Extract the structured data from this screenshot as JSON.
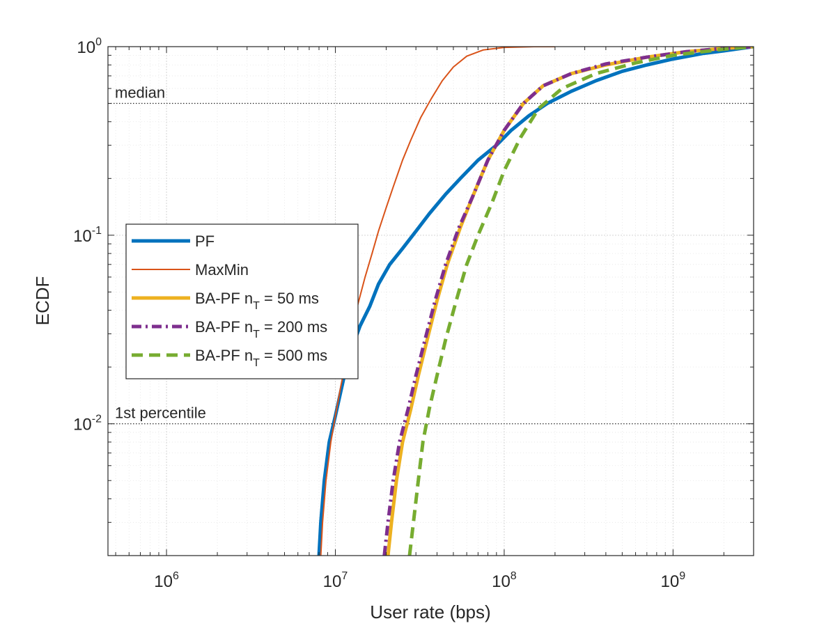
{
  "chart_data": {
    "type": "line",
    "xscale": "log",
    "yscale": "log",
    "xlabel": "User rate (bps)",
    "ylabel": "ECDF",
    "xlim": [
      450000,
      3000000000
    ],
    "ylim": [
      0.002,
      1
    ],
    "grid": true,
    "x_ticks": [
      {
        "value": 1000000,
        "base": "10",
        "exp": "6"
      },
      {
        "value": 10000000,
        "base": "10",
        "exp": "7"
      },
      {
        "value": 100000000,
        "base": "10",
        "exp": "8"
      },
      {
        "value": 1000000000,
        "base": "10",
        "exp": "9"
      }
    ],
    "y_ticks": [
      {
        "value": 0.01,
        "base": "10",
        "exp": "-2"
      },
      {
        "value": 0.1,
        "base": "10",
        "exp": "-1"
      },
      {
        "value": 1,
        "base": "10",
        "exp": "0"
      }
    ],
    "reference_lines": [
      {
        "y": 0.5,
        "label": "median"
      },
      {
        "y": 0.01,
        "label": "1st percentile"
      }
    ],
    "legend": {
      "location": "center-left",
      "entries": [
        {
          "series": 0,
          "label": "PF",
          "sub": ""
        },
        {
          "series": 1,
          "label": "MaxMin",
          "sub": ""
        },
        {
          "series": 2,
          "label": "BA-PF n",
          "sub": "T",
          "suffix": " = 50 ms"
        },
        {
          "series": 3,
          "label": "BA-PF n",
          "sub": "T",
          "suffix": " = 200 ms"
        },
        {
          "series": 4,
          "label": "BA-PF n",
          "sub": "T",
          "suffix": " = 500 ms"
        }
      ]
    },
    "series": [
      {
        "name": "PF",
        "color": "#0072BD",
        "style": "solid",
        "weight": "thick",
        "x": [
          8000000,
          8200000,
          8600000,
          9200000,
          10000000,
          10800000,
          11600000,
          12500000,
          14000000,
          16000000,
          18000000,
          21000000,
          25000000,
          30000000,
          36000000,
          45000000,
          55000000,
          70000000,
          90000000,
          110000000,
          140000000,
          180000000,
          250000000,
          350000000,
          500000000,
          700000000,
          1000000000,
          1500000000,
          2000000000,
          3000000000
        ],
        "y": [
          0.002,
          0.003,
          0.005,
          0.008,
          0.011,
          0.015,
          0.02,
          0.025,
          0.033,
          0.042,
          0.055,
          0.07,
          0.085,
          0.105,
          0.13,
          0.165,
          0.2,
          0.25,
          0.3,
          0.36,
          0.43,
          0.5,
          0.58,
          0.66,
          0.74,
          0.8,
          0.86,
          0.92,
          0.95,
          1.0
        ]
      },
      {
        "name": "MaxMin",
        "color": "#D95319",
        "style": "solid",
        "weight": "thin",
        "x": [
          8200000,
          8400000,
          8800000,
          9400000,
          10000000,
          10800000,
          11600000,
          12400000,
          13500000,
          15000000,
          16500000,
          18000000,
          20000000,
          22000000,
          25000000,
          28000000,
          32000000,
          37000000,
          43000000,
          50000000,
          60000000,
          75000000,
          100000000,
          150000000,
          200000000
        ],
        "y": [
          0.002,
          0.003,
          0.005,
          0.008,
          0.011,
          0.016,
          0.022,
          0.03,
          0.042,
          0.06,
          0.08,
          0.105,
          0.14,
          0.18,
          0.25,
          0.32,
          0.42,
          0.53,
          0.66,
          0.78,
          0.89,
          0.96,
          0.99,
          1.0,
          1.0
        ]
      },
      {
        "name": "BA-PF nT = 50 ms",
        "color": "#EDB120",
        "style": "solid",
        "weight": "thick",
        "x": [
          20500000,
          21500000,
          23000000,
          25000000,
          28000000,
          31000000,
          35000000,
          40000000,
          46000000,
          55000000,
          65000000,
          80000000,
          100000000,
          130000000,
          170000000,
          250000000,
          400000000,
          700000000,
          1200000000,
          2000000000,
          3000000000
        ],
        "y": [
          0.002,
          0.003,
          0.005,
          0.008,
          0.012,
          0.018,
          0.028,
          0.045,
          0.07,
          0.11,
          0.16,
          0.25,
          0.36,
          0.5,
          0.62,
          0.72,
          0.8,
          0.88,
          0.94,
          0.98,
          1.0
        ]
      },
      {
        "name": "BA-PF nT = 200 ms",
        "color": "#7E2F8E",
        "style": "dashdot",
        "weight": "thick",
        "x": [
          19500000,
          20500000,
          22000000,
          24000000,
          27000000,
          30000000,
          34000000,
          39000000,
          45000000,
          54000000,
          65000000,
          80000000,
          100000000,
          130000000,
          170000000,
          250000000,
          400000000,
          700000000,
          1200000000,
          2000000000,
          3000000000
        ],
        "y": [
          0.002,
          0.003,
          0.005,
          0.008,
          0.012,
          0.018,
          0.028,
          0.045,
          0.07,
          0.11,
          0.16,
          0.25,
          0.36,
          0.5,
          0.62,
          0.72,
          0.81,
          0.88,
          0.94,
          0.98,
          1.0
        ]
      },
      {
        "name": "BA-PF nT = 500 ms",
        "color": "#77AC30",
        "style": "dashed",
        "weight": "thick",
        "x": [
          27500000,
          29000000,
          31000000,
          33000000,
          36000000,
          40000000,
          45000000,
          52000000,
          60000000,
          70000000,
          85000000,
          100000000,
          125000000,
          160000000,
          220000000,
          350000000,
          600000000,
          1000000000,
          2000000000,
          3000000000
        ],
        "y": [
          0.002,
          0.003,
          0.005,
          0.008,
          0.012,
          0.018,
          0.028,
          0.045,
          0.07,
          0.1,
          0.15,
          0.22,
          0.33,
          0.47,
          0.6,
          0.72,
          0.82,
          0.9,
          0.97,
          1.0
        ]
      }
    ]
  }
}
